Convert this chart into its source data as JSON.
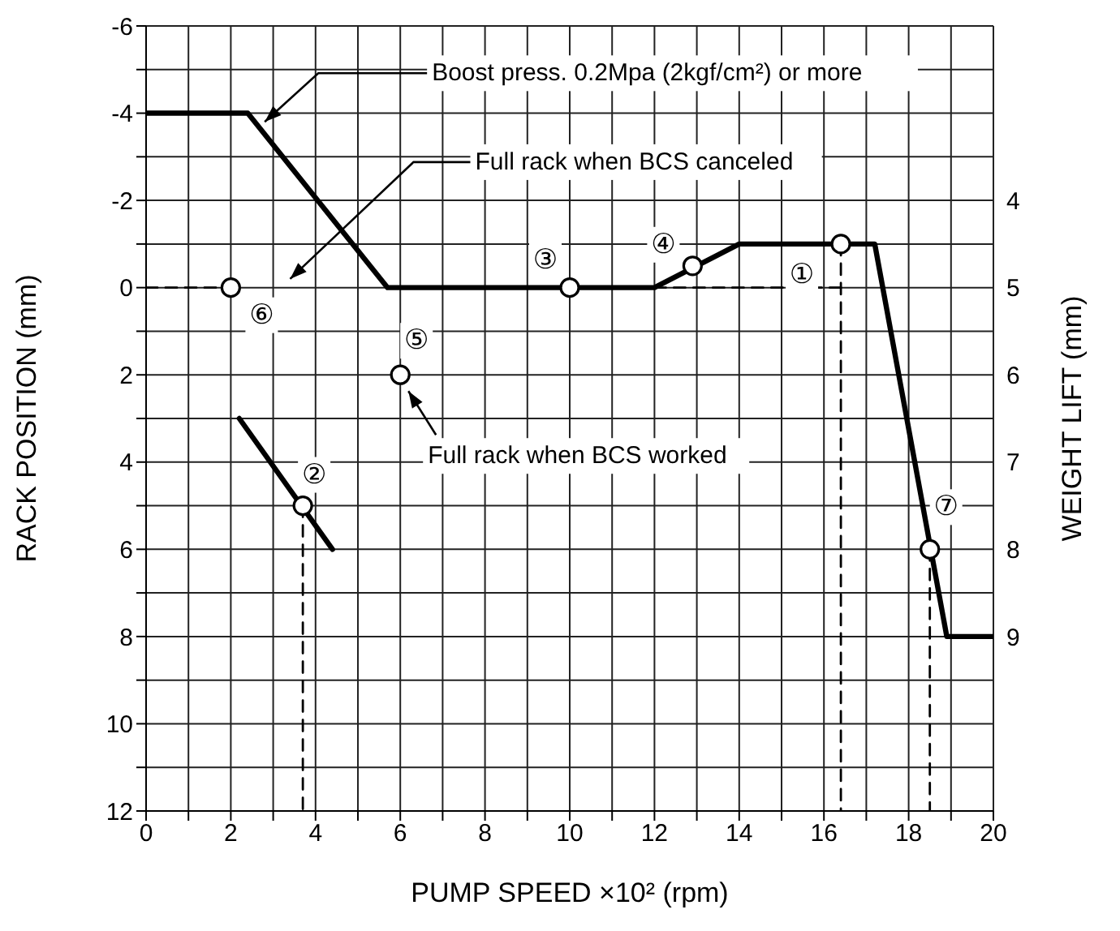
{
  "chart_data": {
    "type": "line",
    "xlabel": "PUMP SPEED ×10² (rpm)",
    "ylabel": "RACK POSITION (mm)",
    "y2label": "WEIGHT LIFT (mm)",
    "xlim": [
      0,
      20
    ],
    "xticks": [
      0,
      {
        "value": 1,
        "label": null
      },
      2,
      {
        "value": 3,
        "label": null
      },
      4,
      {
        "value": 5,
        "label": null
      },
      6,
      {
        "value": 7,
        "label": null
      },
      8,
      {
        "value": 9,
        "label": null
      },
      10,
      {
        "value": 11,
        "label": null
      },
      12,
      {
        "value": 13,
        "label": null
      },
      14,
      {
        "value": 15,
        "label": null
      },
      16,
      {
        "value": 17,
        "label": null
      },
      18,
      {
        "value": 19,
        "label": null
      },
      20
    ],
    "ylim": [
      12,
      -6
    ],
    "yticks": [
      -6,
      {
        "value": -5,
        "label": null
      },
      -4,
      {
        "value": -3,
        "label": null
      },
      -2,
      {
        "value": -1,
        "label": null
      },
      0,
      {
        "value": 1,
        "label": null
      },
      2,
      {
        "value": 3,
        "label": null
      },
      4,
      {
        "value": 5,
        "label": null
      },
      6,
      {
        "value": 7,
        "label": null
      },
      8,
      {
        "value": 9,
        "label": null
      },
      10,
      {
        "value": 11,
        "label": null
      },
      12
    ],
    "y2lim": [
      11,
      2
    ],
    "y2ticks": [
      4,
      5,
      6,
      7,
      8,
      9
    ],
    "grid": true,
    "series": [
      {
        "color": "#000000",
        "line_style": "solid",
        "x": [
          0,
          2.4,
          5.7,
          12,
          14,
          17.2,
          18.9,
          20
        ],
        "values": [
          -4,
          -4,
          0,
          0,
          -1,
          -1,
          8,
          8
        ]
      },
      {
        "color": "#000000",
        "line_style": "solid",
        "x": [
          2.2,
          4.4
        ],
        "values": [
          3,
          6
        ]
      },
      {
        "type": "line",
        "color": "#000000",
        "line_style": "dashed",
        "x": [
          16.4,
          16.4
        ],
        "values": [
          -1,
          12
        ]
      },
      {
        "type": "line",
        "color": "#000000",
        "line_style": "dashed",
        "x": [
          3.7,
          3.7
        ],
        "values": [
          5,
          12
        ]
      },
      {
        "type": "line",
        "color": "#000000",
        "line_style": "dashed",
        "x": [
          18.5,
          18.5
        ],
        "values": [
          6,
          12
        ]
      },
      {
        "type": "line",
        "color": "#000000",
        "line_style": "dashed",
        "x": [
          0,
          2
        ],
        "values": [
          0,
          0
        ]
      },
      {
        "type": "line",
        "color": "#000000",
        "line_style": "dashed",
        "x": [
          12,
          16.4
        ],
        "values": [
          0,
          0
        ]
      },
      {
        "type": "scatter",
        "color": "#000000",
        "marker": "circle",
        "x": [
          16.4,
          3.7,
          10,
          12.9,
          6,
          2,
          18.5
        ],
        "values": [
          -1,
          5,
          0,
          -0.5,
          2,
          0,
          6
        ]
      }
    ],
    "annotations": [
      {
        "text": "Boost press. 0.2Mpa (2kgf/cm²) or more",
        "x": 2.8,
        "y": -3.8
      },
      "Full rack when BCS canceled",
      {
        "text": "Full rack when BCS worked",
        "x": 6,
        "y": 2
      },
      {
        "text": "①",
        "x": 16.4,
        "y": -1
      },
      {
        "text": "②",
        "x": 3.7,
        "y": 5
      },
      {
        "text": "③",
        "x": 10,
        "y": 0
      },
      {
        "text": "④",
        "x": 12.9,
        "y": -0.5
      },
      {
        "text": "⑤",
        "x": 6,
        "y": 2
      },
      {
        "text": "⑥",
        "x": 2,
        "y": 0
      },
      {
        "text": "⑦",
        "x": 18.5,
        "y": 6
      }
    ]
  }
}
